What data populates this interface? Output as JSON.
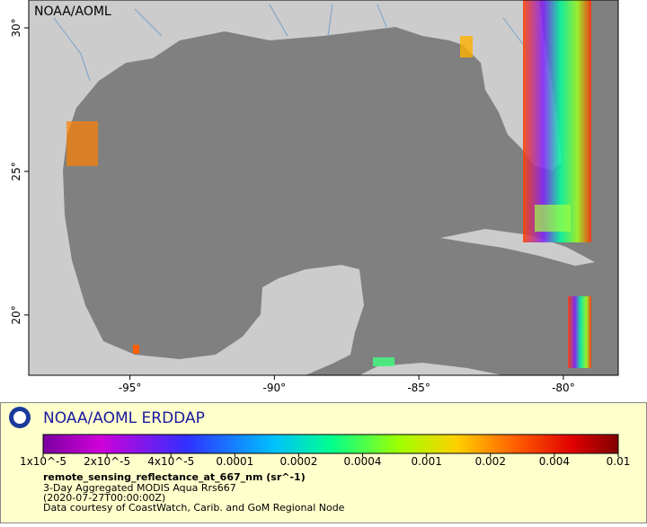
{
  "map": {
    "label": "NOAA/AOML",
    "xlim": [
      -98.5,
      -78.1
    ],
    "ylim": [
      17.9,
      30.97
    ],
    "xticks": [
      {
        "value": -95,
        "label": "-95°"
      },
      {
        "value": -90,
        "label": "-90°"
      },
      {
        "value": -85,
        "label": "-85°"
      },
      {
        "value": -80,
        "label": "-80°"
      }
    ],
    "yticks": [
      {
        "value": 20,
        "label": "20°"
      },
      {
        "value": 25,
        "label": "25°"
      },
      {
        "value": 30,
        "label": "30°"
      }
    ]
  },
  "legend": {
    "title": "NOAA/AOML ERDDAP",
    "colorbar_ticks": [
      {
        "value": 1e-05,
        "label": "1x10^-5"
      },
      {
        "value": 2e-05,
        "label": "2x10^-5"
      },
      {
        "value": 4e-05,
        "label": "4x10^-5"
      },
      0.0001,
      0.0002,
      0.0004,
      0.001,
      0.002,
      0.004,
      0.01
    ],
    "variable": "remote_sensing_reflectance_at_667_nm (sr^-1)",
    "lines": [
      "3-Day Aggregated MODIS Aqua Rrs667",
      "(2020-07-27T00:00:00Z)",
      "Data courtesy of CoastWatch, Carib. and GoM Regional Node"
    ]
  }
}
